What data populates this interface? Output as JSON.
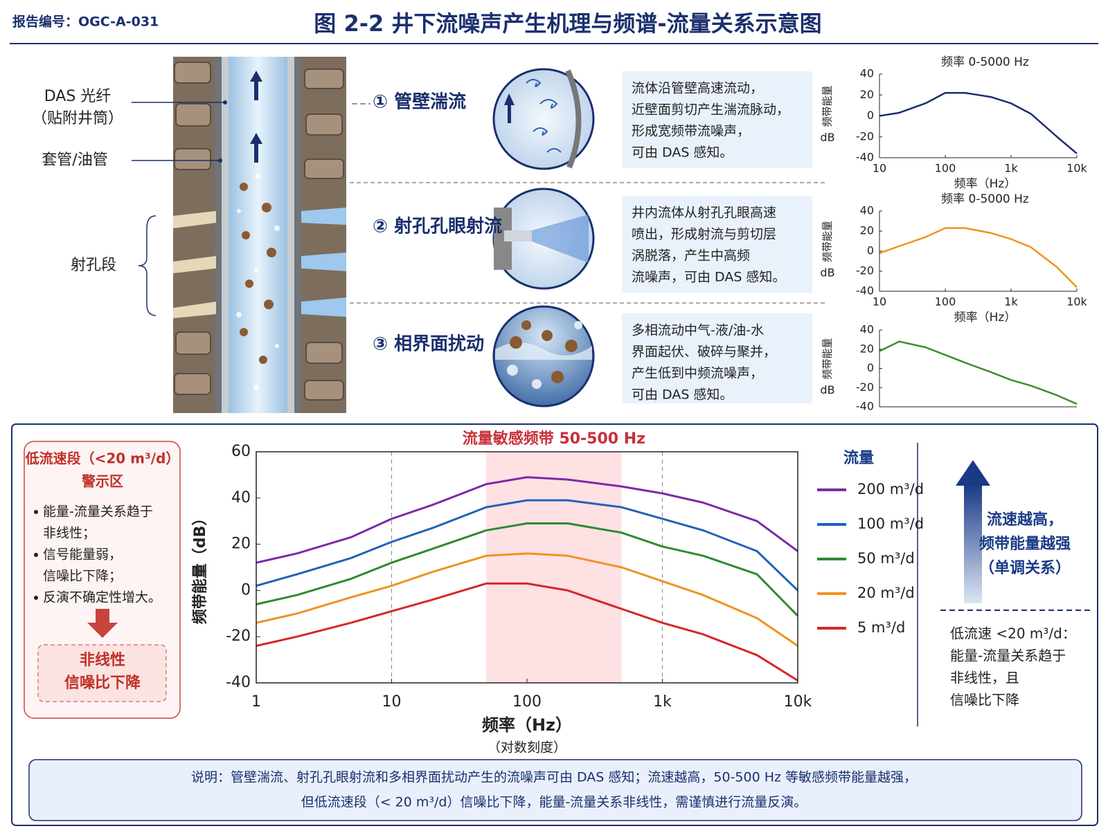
{
  "header": {
    "report_no": "报告编号：OGC-A-031",
    "title": "图 2-2  井下流噪声产生机理与频谱-流量关系示意图"
  },
  "well_labels": {
    "fiber": "DAS 光纤",
    "fiber_note": "（贴附井筒）",
    "casing": "套管/油管",
    "perforation": "射孔段"
  },
  "mechanisms": [
    {
      "title": "① 管壁湍流",
      "lines": [
        "流体沿管壁高速流动，",
        "近壁面剪切产生湍流脉动，",
        "形成宽频带流噪声，",
        "可由 DAS 感知。"
      ]
    },
    {
      "title": "② 射孔孔眼射流",
      "lines": [
        "井内流体从射孔孔眼高速",
        "喷出，形成射流与剪切层",
        "涡脱落，产生中高频",
        "流噪声，可由 DAS 感知。"
      ]
    },
    {
      "title": "③ 相界面扰动",
      "lines": [
        "多相流动中气-液/油-水",
        "界面起伏、破碎与聚并，",
        "产生低到中频流噪声，",
        "可由 DAS 感知。"
      ]
    }
  ],
  "warning": {
    "title": [
      "低流速段（<20 m³/d）",
      "警示区"
    ],
    "items": [
      [
        "能量-流量关系趋于",
        "非线性；"
      ],
      [
        "信号能量弱，",
        "信噪比下降；"
      ],
      [
        "反演不确定性增大。"
      ]
    ],
    "box": [
      "非线性",
      "信噪比下降"
    ]
  },
  "trend": {
    "arrow_text": [
      "流速越高，",
      "频带能量越强",
      "（单调关系）"
    ],
    "note": [
      "低流速 <20 m³/d：",
      "能量-流量关系趋于",
      "非线性，且",
      "信噪比下降"
    ]
  },
  "footer": [
    "说明：管壁湍流、射孔孔眼射流和多相界面扰动产生的流噪声可由  DAS  感知；流速越高，50-500 Hz 等敏感频带能量越强，",
    "但低流速段（< 20 m³/d）信噪比下降，能量-流量关系非线性，需谨慎进行流量反演。"
  ],
  "chart_data": [
    {
      "type": "line",
      "title": "频率  0-5000 Hz",
      "x_label": "频率（Hz）",
      "y_label": "频带能量",
      "y_unit": "dB",
      "xscale": "log",
      "x": [
        10,
        20,
        50,
        100,
        200,
        500,
        1000,
        2000,
        5000,
        10000
      ],
      "values": [
        0,
        3,
        12,
        22,
        22,
        18,
        12,
        2,
        -20,
        -36
      ],
      "color": "#1a2f6e",
      "xlim": [
        10,
        10000
      ],
      "ylim": [
        -40,
        40
      ],
      "xticks": [
        10,
        100,
        {
          "value": 1000,
          "label": "1k"
        },
        {
          "value": 10000,
          "label": "10k"
        }
      ],
      "yticks": [
        -40,
        -20,
        0,
        20,
        40
      ]
    },
    {
      "type": "line",
      "title": "频率  0-5000 Hz",
      "x_label": "频率（Hz）",
      "y_label": "频带能量",
      "y_unit": "dB",
      "xscale": "log",
      "x": [
        10,
        20,
        50,
        100,
        200,
        500,
        1000,
        2000,
        5000,
        10000
      ],
      "values": [
        -2,
        5,
        14,
        23,
        23,
        18,
        12,
        4,
        -16,
        -36
      ],
      "color": "#f0921e",
      "xlim": [
        10,
        10000
      ],
      "ylim": [
        -40,
        40
      ],
      "xticks": [
        10,
        100,
        {
          "value": 1000,
          "label": "1k"
        },
        {
          "value": 10000,
          "label": "10k"
        }
      ],
      "yticks": [
        -40,
        -20,
        0,
        20,
        40
      ]
    },
    {
      "type": "line",
      "y_label": "频带能量",
      "y_unit": "dB",
      "xscale": "log",
      "x": [
        10,
        20,
        50,
        100,
        200,
        500,
        1000,
        2000,
        5000,
        10000
      ],
      "values": [
        18,
        28,
        22,
        14,
        6,
        -4,
        -12,
        -18,
        -28,
        -37
      ],
      "color": "#3d8c2e",
      "xlim": [
        10,
        10000
      ],
      "ylim": [
        -40,
        40
      ],
      "yticks": [
        -40,
        -20,
        0,
        20,
        40
      ]
    },
    {
      "type": "line",
      "annotation": "流量敏感频带 50-500 Hz",
      "band": [
        50,
        500
      ],
      "vlines": [
        10,
        1000
      ],
      "x_label": "频率（Hz）",
      "x_note": "（对数刻度）",
      "y_label": "频带能量（dB）",
      "xscale": "log",
      "legend_title": "流量",
      "legend": "right",
      "x": [
        1,
        2,
        5,
        10,
        20,
        50,
        100,
        200,
        500,
        1000,
        2000,
        5000,
        10000
      ],
      "series": [
        {
          "name": "200 m³/d",
          "color": "#7b2aa8",
          "values": [
            12,
            16,
            23,
            31,
            37,
            46,
            49,
            48,
            45,
            42,
            38,
            30,
            17
          ]
        },
        {
          "name": "100 m³/d",
          "color": "#1f63b8",
          "values": [
            2,
            7,
            14,
            21,
            27,
            36,
            39,
            39,
            36,
            31,
            26,
            17,
            0
          ]
        },
        {
          "name": "50 m³/d",
          "color": "#2f8a32",
          "values": [
            -6,
            -2,
            5,
            12,
            18,
            26,
            29,
            29,
            25,
            19,
            15,
            7,
            -11
          ]
        },
        {
          "name": "20 m³/d",
          "color": "#f0921e",
          "values": [
            -14,
            -10,
            -3,
            2,
            8,
            15,
            16,
            15,
            10,
            4,
            -2,
            -12,
            -24
          ]
        },
        {
          "name": "5 m³/d",
          "color": "#d6262b",
          "values": [
            -24,
            -20,
            -14,
            -9,
            -4,
            3,
            3,
            0,
            -8,
            -14,
            -19,
            -28,
            -39
          ]
        }
      ],
      "xlim": [
        1,
        10000
      ],
      "ylim": [
        -40,
        60
      ],
      "xticks": [
        1,
        10,
        100,
        {
          "value": 1000,
          "label": "1k"
        },
        {
          "value": 10000,
          "label": "10k"
        }
      ],
      "yticks": [
        -40,
        -20,
        0,
        20,
        40,
        60
      ]
    }
  ]
}
